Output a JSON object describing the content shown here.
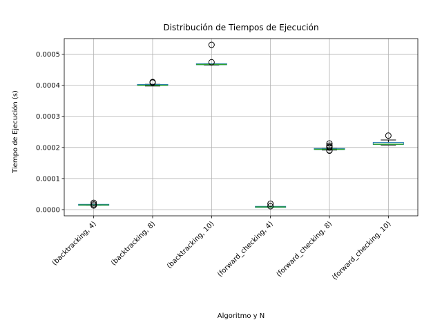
{
  "chart_data": {
    "type": "box",
    "title": "Distribución de Tiempos de Ejecución",
    "xlabel": "Algoritmo y N",
    "ylabel": "Tiempo de Ejecución (s)",
    "ylim": [
      -2e-05,
      0.00055
    ],
    "yticks": [
      "0.0000",
      "0.0001",
      "0.0002",
      "0.0003",
      "0.0004",
      "0.0005"
    ],
    "ytick_values": [
      0,
      0.0001,
      0.0002,
      0.0003,
      0.0004,
      0.0005
    ],
    "grid": true,
    "categories": [
      "(backtracking, 4)",
      "(backtracking, 8)",
      "(backtracking, 10)",
      "(forward_checking, 4)",
      "(forward_checking, 8)",
      "(forward_checking, 10)"
    ],
    "boxes": [
      {
        "whisker_low": 1.42e-05,
        "q1": 1.47e-05,
        "median": 1.5e-05,
        "q3": 1.54e-05,
        "whisker_high": 1.58e-05,
        "outliers": [
          1.32e-05,
          1.68e-05,
          2.2e-05
        ]
      },
      {
        "whisker_low": 0.0003975,
        "q1": 0.0003995,
        "median": 0.0004,
        "q3": 0.000401,
        "whisker_high": 0.000403,
        "outliers": [
          0.0004085,
          0.0004105
        ]
      },
      {
        "whisker_low": 0.000465,
        "q1": 0.000466,
        "median": 0.0004668,
        "q3": 0.0004676,
        "whisker_high": 0.000469,
        "outliers": [
          0.000474,
          0.00053
        ]
      },
      {
        "whisker_low": 7.8e-06,
        "q1": 8.2e-06,
        "median": 8.5e-06,
        "q3": 8.8e-06,
        "whisker_high": 9.4e-06,
        "outliers": [
          1.08e-05,
          1.9e-05
        ]
      },
      {
        "whisker_low": 0.0001915,
        "q1": 0.000193,
        "median": 0.000194,
        "q3": 0.000195,
        "whisker_high": 0.0001965,
        "outliers": [
          0.0001895,
          0.0001905,
          0.0001995,
          0.000202,
          0.000206,
          0.000213
        ]
      },
      {
        "whisker_low": 0.0002075,
        "q1": 0.0002095,
        "median": 0.0002105,
        "q3": 0.000216,
        "whisker_high": 0.000224,
        "outliers": [
          0.000238
        ]
      }
    ],
    "colors": {
      "box": "#1f77b4",
      "median": "#2ca02c",
      "whisker": "#000000",
      "grid": "#b0b0b0"
    }
  }
}
